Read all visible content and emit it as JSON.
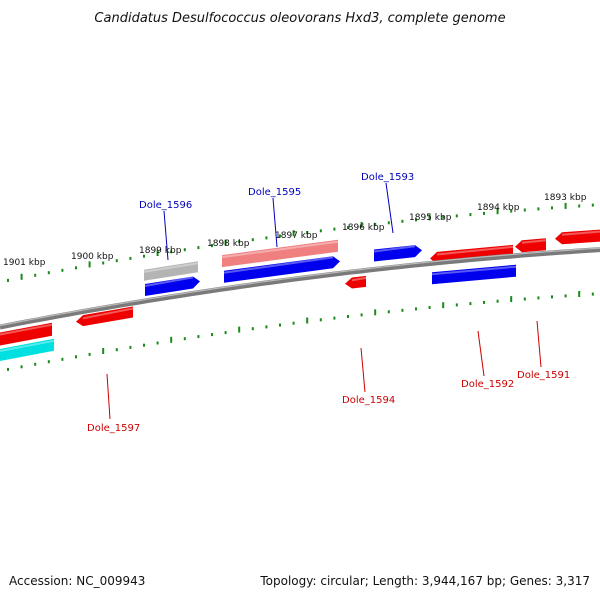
{
  "title": "Candidatus Desulfococcus oleovorans Hxd3, complete genome",
  "footer": {
    "accession": "Accession: NC_009943",
    "topology": "Topology: circular; Length: 3,944,167 bp; Genes: 3,317"
  },
  "colors": {
    "forward_gene": "#0000ee",
    "reverse_gene": "#ee0000",
    "pseudo_reverse": "#f08080",
    "gray_gene": "#b4b4b4",
    "cyan_gene": "#00e0e0",
    "ticks": "#1a8a1a",
    "backbone": "#7a7a7a",
    "label_forward": "#0000bb",
    "label_reverse": "#cc0000"
  },
  "tick_labels": [
    "1901 kbp",
    "1900 kbp",
    "1899 kbp",
    "1898 kbp",
    "1897 kbp",
    "1896 kbp",
    "1895 kbp",
    "1894 kbp",
    "1893 kbp"
  ],
  "gene_labels": [
    {
      "name": "Dole_1596",
      "strand": "forward"
    },
    {
      "name": "Dole_1595",
      "strand": "forward"
    },
    {
      "name": "Dole_1593",
      "strand": "forward"
    },
    {
      "name": "Dole_1597",
      "strand": "reverse"
    },
    {
      "name": "Dole_1594",
      "strand": "reverse"
    },
    {
      "name": "Dole_1592",
      "strand": "reverse"
    },
    {
      "name": "Dole_1591",
      "strand": "reverse"
    }
  ]
}
